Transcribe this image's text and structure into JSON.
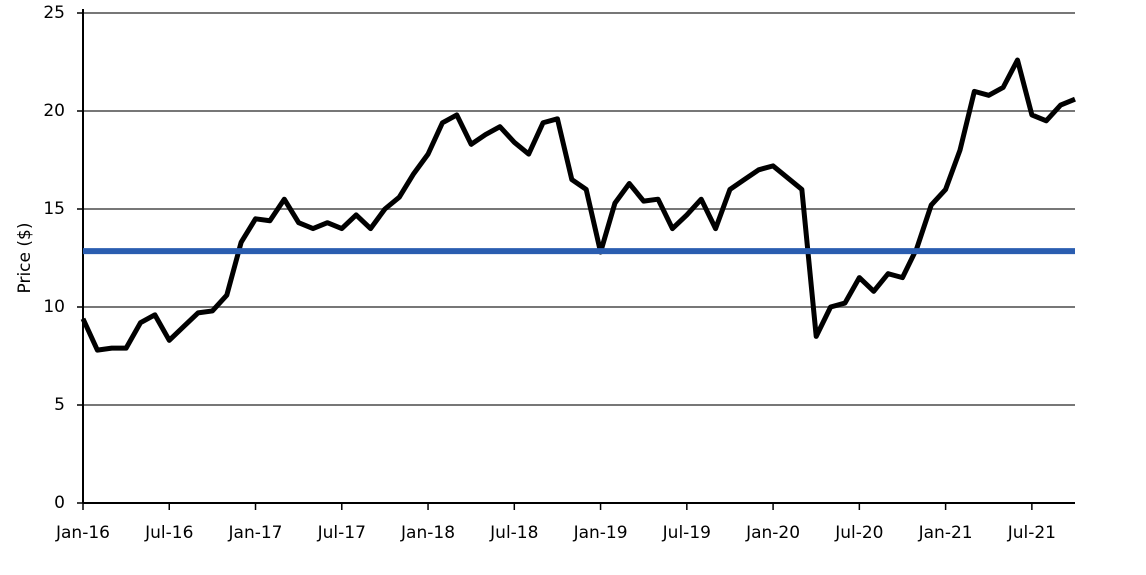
{
  "chart_data": {
    "type": "line",
    "ylabel": "Price ($)",
    "x": [
      "2016-01",
      "2016-02",
      "2016-03",
      "2016-04",
      "2016-05",
      "2016-06",
      "2016-07",
      "2016-08",
      "2016-09",
      "2016-10",
      "2016-11",
      "2016-12",
      "2017-01",
      "2017-02",
      "2017-03",
      "2017-04",
      "2017-05",
      "2017-06",
      "2017-07",
      "2017-08",
      "2017-09",
      "2017-10",
      "2017-11",
      "2017-12",
      "2018-01",
      "2018-02",
      "2018-03",
      "2018-04",
      "2018-05",
      "2018-06",
      "2018-07",
      "2018-08",
      "2018-09",
      "2018-10",
      "2018-11",
      "2018-12",
      "2019-01",
      "2019-02",
      "2019-03",
      "2019-04",
      "2019-05",
      "2019-06",
      "2019-07",
      "2019-08",
      "2019-09",
      "2019-10",
      "2019-11",
      "2019-12",
      "2020-01",
      "2020-02",
      "2020-03",
      "2020-04",
      "2020-05",
      "2020-06",
      "2020-07",
      "2020-08",
      "2020-09",
      "2020-10",
      "2020-11",
      "2020-12",
      "2021-01",
      "2021-02",
      "2021-03",
      "2021-04",
      "2021-05",
      "2021-06",
      "2021-07",
      "2021-08",
      "2021-09",
      "2021-10"
    ],
    "series": [
      {
        "color": "#000000",
        "values": [
          9.4,
          7.8,
          7.9,
          7.9,
          9.2,
          9.6,
          8.3,
          9.0,
          9.7,
          9.8,
          10.6,
          13.3,
          14.5,
          14.4,
          15.5,
          14.3,
          14.0,
          14.3,
          14.0,
          14.7,
          14.0,
          15.0,
          15.6,
          16.8,
          17.8,
          19.4,
          19.8,
          18.3,
          18.8,
          19.2,
          18.4,
          17.8,
          19.4,
          19.6,
          16.5,
          16.0,
          12.8,
          15.3,
          16.3,
          15.4,
          15.5,
          14.0,
          14.7,
          15.5,
          14.0,
          16.0,
          16.5,
          17.0,
          17.2,
          16.6,
          16.0,
          8.5,
          10.0,
          10.2,
          11.5,
          10.8,
          11.7,
          11.5,
          13.0,
          15.2,
          16.0,
          18.0,
          21.0,
          20.8,
          21.2,
          22.6,
          19.8,
          19.5,
          20.3,
          20.6
        ]
      }
    ],
    "hline": {
      "value": 12.85,
      "color": "#2a5db0"
    },
    "xlim": [
      "2016-01",
      "2021-10"
    ],
    "xticks": [
      {
        "value": "2016-01",
        "label": "Jan-16"
      },
      {
        "value": "2016-07",
        "label": "Jul-16"
      },
      {
        "value": "2017-01",
        "label": "Jan-17"
      },
      {
        "value": "2017-07",
        "label": "Jul-17"
      },
      {
        "value": "2018-01",
        "label": "Jan-18"
      },
      {
        "value": "2018-07",
        "label": "Jul-18"
      },
      {
        "value": "2019-01",
        "label": "Jan-19"
      },
      {
        "value": "2019-07",
        "label": "Jul-19"
      },
      {
        "value": "2020-01",
        "label": "Jan-20"
      },
      {
        "value": "2020-07",
        "label": "Jul-20"
      },
      {
        "value": "2021-01",
        "label": "Jan-21"
      },
      {
        "value": "2021-07",
        "label": "Jul-21"
      }
    ],
    "ylim": [
      0,
      25
    ],
    "yticks": [
      0,
      5,
      10,
      15,
      20,
      25
    ],
    "grid": true
  }
}
